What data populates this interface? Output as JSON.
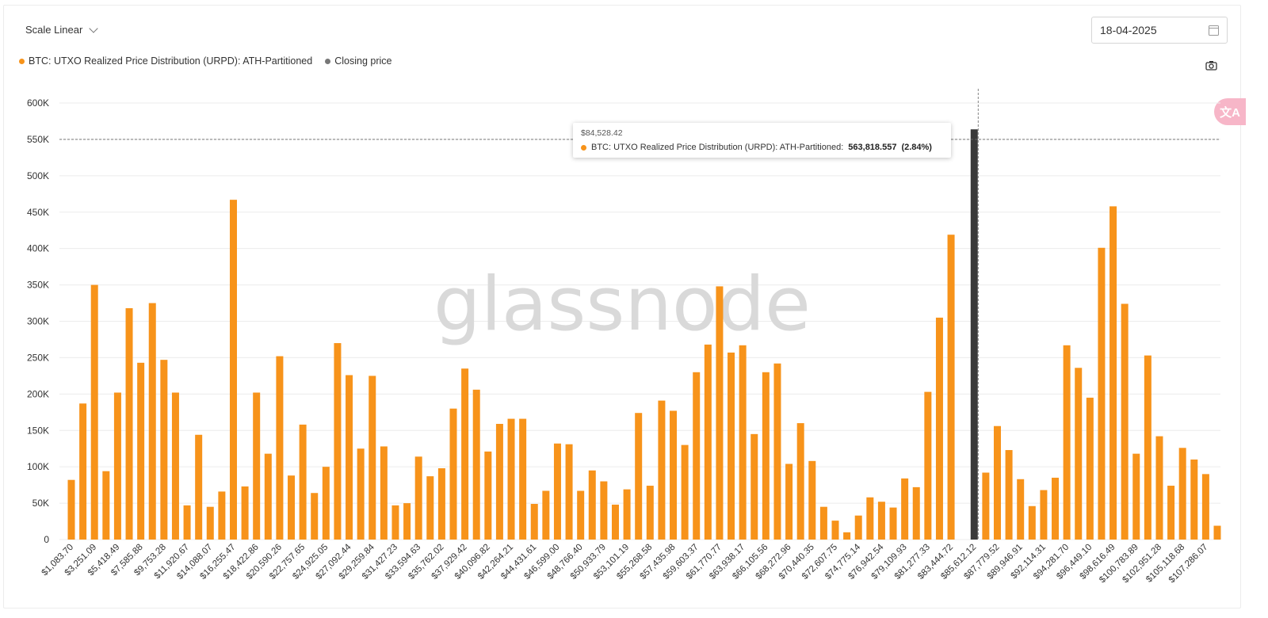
{
  "controls": {
    "scale_label": "Scale Linear",
    "date_value": "18-04-2025"
  },
  "legend": [
    {
      "label": "BTC: UTXO Realized Price Distribution (URPD): ATH-Partitioned",
      "color": "#f7931a"
    },
    {
      "label": "Closing price",
      "color": "#777777"
    }
  ],
  "icons": {
    "scale_dropdown": "chevron-down-icon",
    "date": "calendar-icon",
    "snapshot": "camera-icon",
    "translate": "translate-icon"
  },
  "watermark": "glassnode",
  "tooltip": {
    "x": "$84,528.42",
    "series": "BTC: UTXO Realized Price Distribution (URPD): ATH-Partitioned:",
    "value": "563,818.557",
    "pct": "(2.84%)"
  },
  "chart_data": {
    "type": "bar",
    "y_ticks": [
      "0",
      "50K",
      "100K",
      "150K",
      "200K",
      "250K",
      "300K",
      "350K",
      "400K",
      "450K",
      "500K",
      "550K",
      "600K"
    ],
    "ylim": [
      0,
      600000
    ],
    "reference_line": 550000,
    "highlight_index": 78,
    "colors": {
      "bar": "#f7931a",
      "highlight": "#3a3a3a"
    },
    "x_tick_labels": [
      "$1,083.70",
      "$3,251.09",
      "$5,418.49",
      "$7,585.88",
      "$9,753.28",
      "$11,920.67",
      "$14,088.07",
      "$16,255.47",
      "$18,422.86",
      "$20,590.26",
      "$22,757.65",
      "$24,925.05",
      "$27,092.44",
      "$29,259.84",
      "$31,427.23",
      "$33,594.63",
      "$35,762.02",
      "$37,929.42",
      "$40,096.82",
      "$42,264.21",
      "$44,431.61",
      "$46,599.00",
      "$48,766.40",
      "$50,933.79",
      "$53,101.19",
      "$55,268.58",
      "$57,435.98",
      "$59,603.37",
      "$61,770.77",
      "$63,938.17",
      "$66,105.56",
      "$68,272.96",
      "$70,440.35",
      "$72,607.75",
      "$74,775.14",
      "$76,942.54",
      "$79,109.93",
      "$81,277.33",
      "$83,444.72",
      "$85,612.12",
      "$87,779.52",
      "$89,946.91",
      "$92,114.31",
      "$94,281.70",
      "$96,449.10",
      "$98,616.49",
      "$100,783.89",
      "$102,951.28",
      "$105,118.68",
      "$107,286.07"
    ],
    "values": [
      82000,
      187000,
      350000,
      94000,
      202000,
      318000,
      243000,
      325000,
      247000,
      202000,
      47000,
      144000,
      45000,
      66000,
      467000,
      73000,
      202000,
      118000,
      252000,
      88000,
      158000,
      64000,
      100000,
      270000,
      226000,
      125000,
      225000,
      128000,
      47000,
      50000,
      114000,
      87000,
      98000,
      180000,
      235000,
      206000,
      121000,
      159000,
      166000,
      166000,
      49000,
      67000,
      132000,
      131000,
      67000,
      95000,
      80000,
      48000,
      69000,
      174000,
      74000,
      191000,
      177000,
      130000,
      230000,
      268000,
      348000,
      257000,
      267000,
      145000,
      230000,
      242000,
      104000,
      160000,
      108000,
      45000,
      26000,
      10000,
      33000,
      58000,
      52000,
      44000,
      84000,
      72000,
      203000,
      305000,
      419000,
      0,
      563818.557,
      92000,
      156000,
      123000,
      83000,
      46000,
      68000,
      85000,
      267000,
      236000,
      195000,
      401000,
      458000,
      324000,
      118000,
      253000,
      142000,
      74000,
      126000,
      110000,
      90000,
      19000
    ]
  }
}
